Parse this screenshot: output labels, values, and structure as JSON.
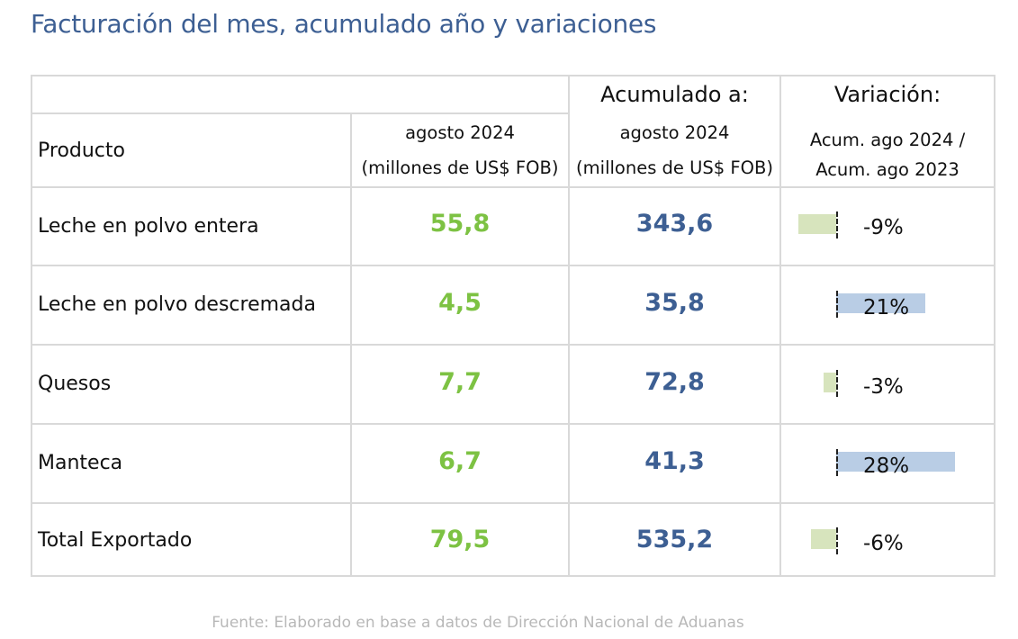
{
  "title": "Facturación del mes, acumulado año y variaciones",
  "header": {
    "product": "Producto",
    "month_line1": "agosto 2024",
    "month_line2": "(millones de US$ FOB)",
    "cum_title": "Acumulado a:",
    "cum_line1": "agosto 2024",
    "cum_line2": "(millones de US$ FOB)",
    "var_title": "Variación:",
    "var_line1": "Acum. ago 2024 /",
    "var_line2": "Acum. ago 2023"
  },
  "rows": [
    {
      "product": "Leche en polvo entera",
      "month": "55,8",
      "cumulative": "343,6",
      "variation": "-9%"
    },
    {
      "product": "Leche en polvo descremada",
      "month": "4,5",
      "cumulative": "35,8",
      "variation": "21%"
    },
    {
      "product": "Quesos",
      "month": "7,7",
      "cumulative": "72,8",
      "variation": "-3%"
    },
    {
      "product": "Manteca",
      "month": "6,7",
      "cumulative": "41,3",
      "variation": "28%"
    },
    {
      "product": "Total Exportado",
      "month": "79,5",
      "cumulative": "535,2",
      "variation": "-6%"
    }
  ],
  "variation_values": [
    -9,
    21,
    -3,
    28,
    -6
  ],
  "colors": {
    "month_value": "#7dc243",
    "cumulative_value": "#3d5f93",
    "negative_bar": "#d7e4bd",
    "positive_bar": "#b9cde5",
    "title": "#3d5f93"
  },
  "source": "Fuente: Elaborado en base a datos de Dirección Nacional de Aduanas"
}
